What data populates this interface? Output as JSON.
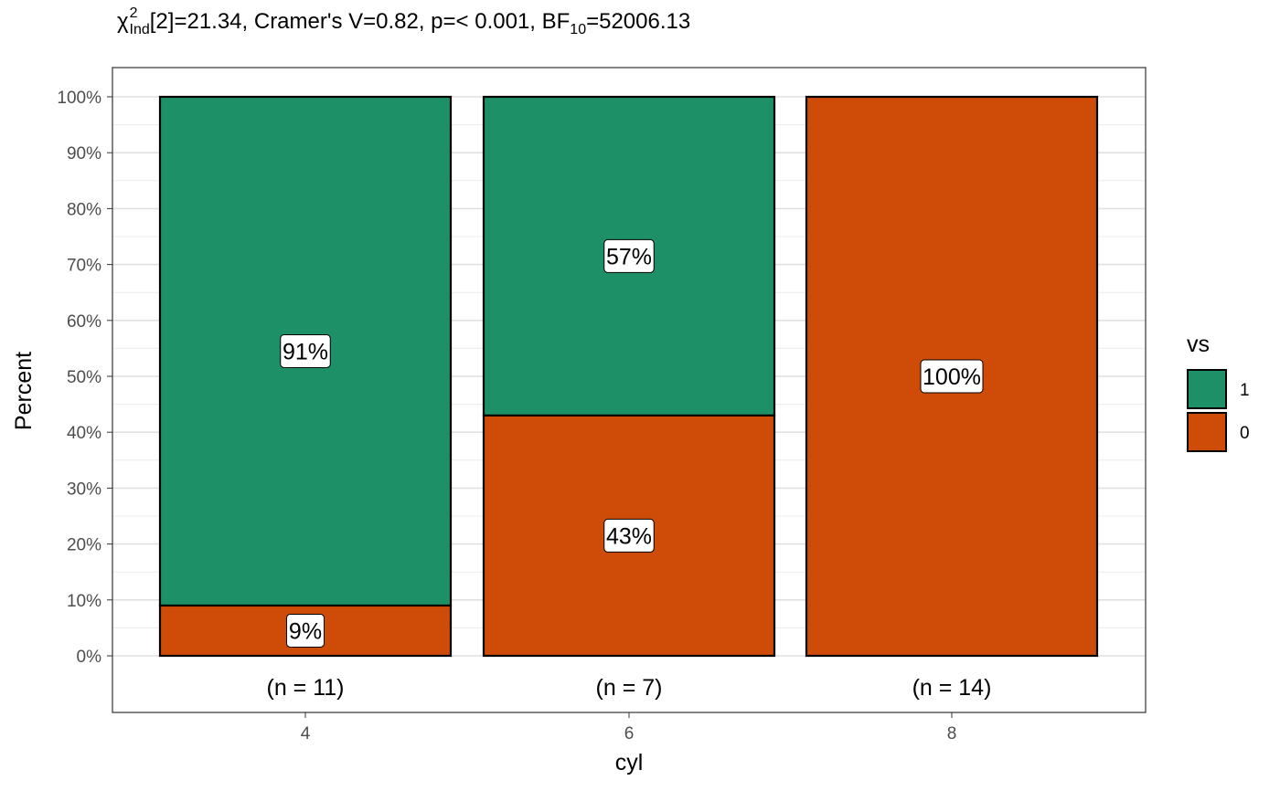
{
  "title": {
    "chi": "χ",
    "chi_sup": "2",
    "chi_sub": "Ind",
    "text1": "[2]=21.34, Cramer's V=0.82, p=< 0.001, BF",
    "bf_sub": "10",
    "text2": "=52006.13"
  },
  "chart_data": {
    "type": "bar",
    "stacked": true,
    "percent": true,
    "categories": [
      "4",
      "6",
      "8"
    ],
    "counts_labels": [
      "(n = 11)",
      "(n = 7)",
      "(n = 14)"
    ],
    "series": [
      {
        "name": "0",
        "color": "#CF4C08",
        "values": [
          9,
          43,
          100
        ],
        "labels": [
          "9%",
          "43%",
          "100%"
        ]
      },
      {
        "name": "1",
        "color": "#1E9068",
        "values": [
          91,
          57,
          0
        ],
        "labels": [
          "91%",
          "57%",
          ""
        ]
      }
    ],
    "xlabel": "cyl",
    "ylabel": "Percent",
    "ylim": [
      0,
      100
    ],
    "yticks": [
      "0%",
      "10%",
      "20%",
      "30%",
      "40%",
      "50%",
      "60%",
      "70%",
      "80%",
      "90%",
      "100%"
    ],
    "legend": {
      "title": "vs",
      "entries": [
        {
          "label": "1",
          "color": "#1E9068"
        },
        {
          "label": "0",
          "color": "#CF4C08"
        }
      ],
      "position": "right"
    },
    "grid": true
  }
}
